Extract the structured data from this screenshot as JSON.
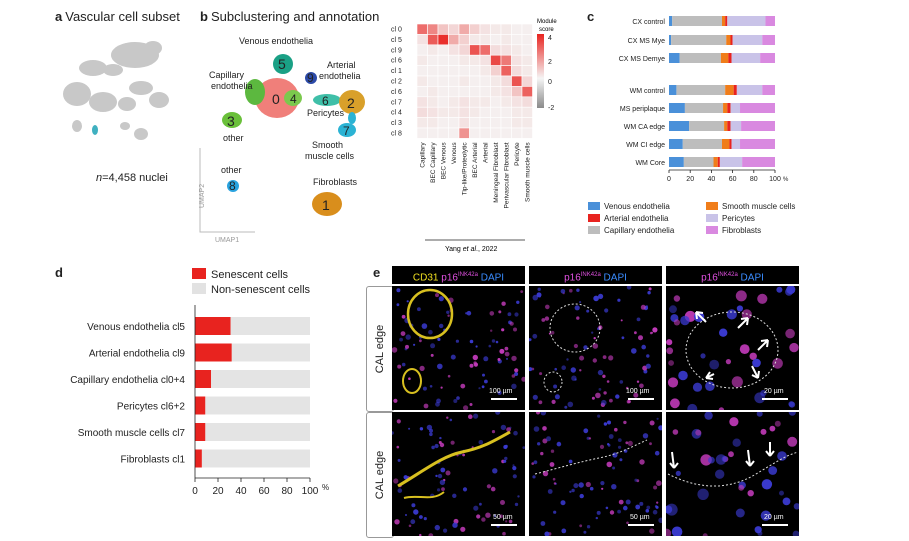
{
  "panel_a": {
    "letter": "a",
    "title": "Vascular cell subset",
    "nuclei_n": "n",
    "nuclei_rest": "=4,458 nuclei"
  },
  "panel_b": {
    "letter": "b",
    "title": "Subclustering and annotation",
    "umap_x": "UMAP1",
    "umap_y": "UMAP2",
    "cluster_labels": {
      "venous": "Venous endothelia",
      "arterial1": "Arterial",
      "arterial2": "endothelia",
      "capillary1": "Capillary",
      "capillary2": "endothelia",
      "other": "other",
      "pericytes": "Pericytes",
      "smooth1": "Smooth",
      "smooth2": "muscle cells",
      "fibroblasts": "Fibroblasts"
    },
    "cluster_numbers": [
      "0",
      "1",
      "2",
      "3",
      "4",
      "5",
      "6",
      "7",
      "8",
      "9"
    ],
    "legend_title1": "Module",
    "legend_title2": "score",
    "legend_ticks": [
      "4",
      "2",
      "0",
      "-2"
    ],
    "citation_pre": "Yang ",
    "citation_em": "et al",
    "citation_post": "., 2022"
  },
  "heatmap": {
    "rows": [
      "cl 0",
      "cl 5",
      "cl 9",
      "cl 6",
      "cl 1",
      "cl 2",
      "cl 6",
      "cl 7",
      "cl 4",
      "cl 3",
      "cl 8"
    ],
    "cols": [
      "Capillary",
      "BEC Capillary",
      "BEC Venous",
      "Venous",
      "Tip-like/Proteolytic",
      "BEC Arterial",
      "Arterial",
      "Meningeal Fibroblast",
      "Perivascular Fibroblast",
      "Pericyte",
      "Smooth muscle cells"
    ],
    "values": [
      [
        2.2,
        1.8,
        0.8,
        0.5,
        1.2,
        0.6,
        0.3,
        0.2,
        0.2,
        0.1,
        0.1
      ],
      [
        0.3,
        2.5,
        3.2,
        1.2,
        0.6,
        0.2,
        0.2,
        0.1,
        0.2,
        0.1,
        0.1
      ],
      [
        0.1,
        0.2,
        0.1,
        0.3,
        0.5,
        2.6,
        2.2,
        0.4,
        0.3,
        0.2,
        0.1
      ],
      [
        0.2,
        0.1,
        0.1,
        0.1,
        0.2,
        0.2,
        0.3,
        2.8,
        2.0,
        0.3,
        0.2
      ],
      [
        0.1,
        0.1,
        0.1,
        0.1,
        0.1,
        0.1,
        0.2,
        0.6,
        2.4,
        0.4,
        0.2
      ],
      [
        0.2,
        0.1,
        0.1,
        0.1,
        0.2,
        0.1,
        0.1,
        0.2,
        0.4,
        2.6,
        0.5
      ],
      [
        0.1,
        0.2,
        0.1,
        0.1,
        0.1,
        0.1,
        0.1,
        0.2,
        0.3,
        0.8,
        2.4
      ],
      [
        0.3,
        0.2,
        0.1,
        0.2,
        0.3,
        0.2,
        0.2,
        0.1,
        0.2,
        0.3,
        0.4
      ],
      [
        0.4,
        0.3,
        0.2,
        0.2,
        0.3,
        0.2,
        0.1,
        0.1,
        0.1,
        0.2,
        0.2
      ],
      [
        0.2,
        0.2,
        0.1,
        0.1,
        0.3,
        0.1,
        0.1,
        0.1,
        0.1,
        0.2,
        0.2
      ],
      [
        0.1,
        0.1,
        0.1,
        0.1,
        1.6,
        0.1,
        0.1,
        0.1,
        0.1,
        0.1,
        0.1
      ]
    ]
  },
  "panel_c": {
    "letter": "c",
    "xaxis_unit": "%",
    "legend": [
      {
        "name": "Venous endothelia",
        "color": "#4a90d9"
      },
      {
        "name": "Arterial endothelia",
        "color": "#e8231f"
      },
      {
        "name": "Capillary endothelia",
        "color": "#bdbdbd"
      },
      {
        "name": "Smooth muscle cells",
        "color": "#f07d1a"
      },
      {
        "name": "Pericytes",
        "color": "#c9c3e8"
      },
      {
        "name": "Fibroblasts",
        "color": "#d989e0"
      }
    ]
  },
  "panel_d": {
    "letter": "d",
    "legend_senescent": "Senescent cells",
    "legend_non": "Non-senescent cells",
    "xaxis_unit": "%"
  },
  "panel_e": {
    "letter": "e",
    "header1_a": "CD31 ",
    "header1_b": "p16",
    "header1_sup": "INK42a",
    "header1_c": " DAPI",
    "header2_b": "p16",
    "header2_sup": "INK42a",
    "header2_c": " DAPI",
    "header3_b": "p16",
    "header3_sup": "INK42a",
    "header3_c": " DAPI",
    "row_label": "CAL edge",
    "scale_100": "100 µm",
    "scale_20": "20 µm",
    "scale_50": "50 µm"
  },
  "chart_data": [
    {
      "type": "bar",
      "stacked": true,
      "orientation": "horizontal",
      "categories": [
        "CX control",
        "CX MS Mye",
        "CX MS Demye",
        "WM control",
        "MS periplaque",
        "WM CA edge",
        "WM CI edge",
        "WM Core"
      ],
      "series": [
        {
          "name": "Venous endothelia",
          "values": [
            3,
            2,
            10,
            7,
            15,
            19,
            13,
            14
          ]
        },
        {
          "name": "Capillary endothelia",
          "values": [
            47,
            52,
            39,
            46,
            36,
            33,
            37,
            28
          ]
        },
        {
          "name": "Smooth muscle cells",
          "values": [
            3,
            4,
            7,
            8,
            4,
            3,
            7,
            4
          ]
        },
        {
          "name": "Arterial endothelia",
          "values": [
            2,
            2,
            3,
            3,
            3,
            3,
            2,
            2
          ]
        },
        {
          "name": "Pericytes",
          "values": [
            36,
            28,
            27,
            24,
            9,
            10,
            8,
            21
          ]
        },
        {
          "name": "Fibroblasts",
          "values": [
            9,
            12,
            14,
            12,
            33,
            32,
            33,
            31
          ]
        }
      ],
      "xlim": [
        0,
        100
      ],
      "xticks": [
        "0",
        "20",
        "40",
        "60",
        "80",
        "100"
      ]
    },
    {
      "type": "bar",
      "stacked": true,
      "orientation": "horizontal",
      "categories": [
        "Venous endothelia cl5",
        "Arterial endothelia cl9",
        "Capillary endothelia cl0+4",
        "Pericytes cl6+2",
        "Smooth muscle cells cl7",
        "Fibroblasts cl1"
      ],
      "series": [
        {
          "name": "Senescent cells",
          "values": [
            31,
            32,
            14,
            9,
            9,
            6
          ]
        },
        {
          "name": "Non-senescent cells",
          "values": [
            69,
            68,
            86,
            91,
            91,
            94
          ]
        }
      ],
      "xlim": [
        0,
        100
      ],
      "xticks": [
        "0",
        "20",
        "40",
        "60",
        "80",
        "100"
      ]
    }
  ]
}
